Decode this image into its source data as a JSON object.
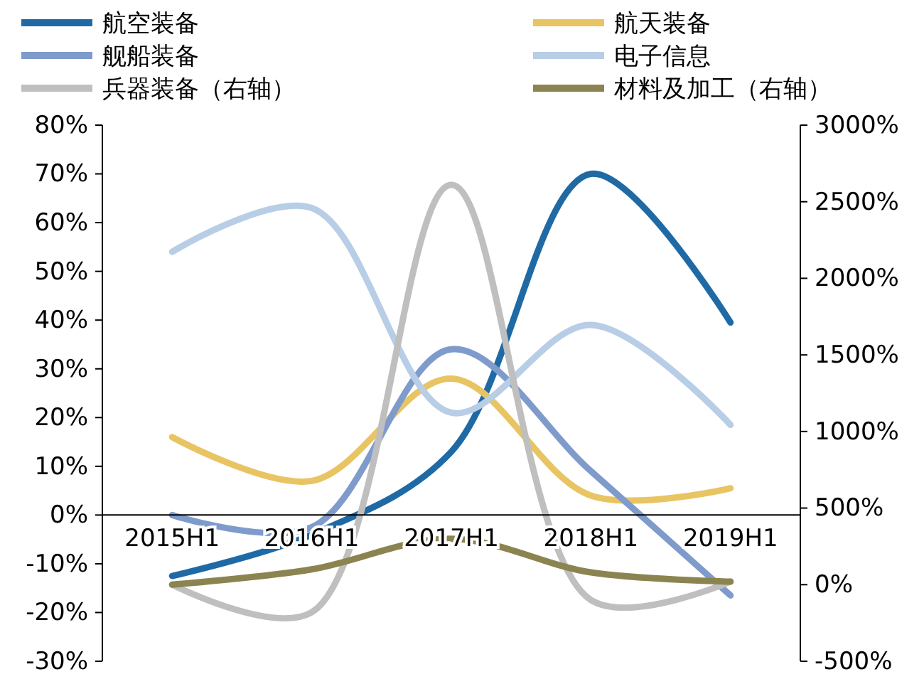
{
  "chart_data": {
    "type": "line",
    "categories": [
      "2015H1",
      "2016H1",
      "2017H1",
      "2018H1",
      "2019H1"
    ],
    "series": [
      {
        "name": "航空装备",
        "color": "#1f6aa5",
        "values": [
          -12.5,
          -4,
          13,
          70,
          39.5
        ]
      },
      {
        "name": "航天装备",
        "color": "#e8c463",
        "values": [
          16,
          7,
          28,
          4,
          5.5
        ]
      },
      {
        "name": "舰船装备",
        "color": "#7f9bcc",
        "values": [
          0,
          -2.5,
          34,
          9,
          -16.5
        ]
      },
      {
        "name": "电子信息",
        "color": "#b8cde6",
        "values": [
          54,
          63,
          21,
          39,
          18.5
        ]
      },
      {
        "name": "兵器装备（右轴）",
        "color": "#bfbfbf",
        "axis": "y2",
        "values": [
          0,
          -180,
          2610,
          -100,
          20
        ]
      },
      {
        "name": "材料及加工（右轴）",
        "color": "#8c8450",
        "axis": "y2",
        "values": [
          0,
          100,
          300,
          80,
          20
        ]
      }
    ],
    "ylim": [
      -30,
      80
    ],
    "yticks": [
      {
        "value": -30,
        "label": "-30%"
      },
      {
        "value": -20,
        "label": "-20%"
      },
      {
        "value": -10,
        "label": "-10%"
      },
      {
        "value": 0,
        "label": "0%"
      },
      {
        "value": 10,
        "label": "10%"
      },
      {
        "value": 20,
        "label": "20%"
      },
      {
        "value": 30,
        "label": "30%"
      },
      {
        "value": 40,
        "label": "40%"
      },
      {
        "value": 50,
        "label": "50%"
      },
      {
        "value": 60,
        "label": "60%"
      },
      {
        "value": 70,
        "label": "70%"
      },
      {
        "value": 80,
        "label": "80%"
      }
    ],
    "y2lim": [
      -500,
      3000
    ],
    "y2ticks": [
      {
        "value": -500,
        "label": "-500%"
      },
      {
        "value": 0,
        "label": "0%"
      },
      {
        "value": 500,
        "label": "500%"
      },
      {
        "value": 1000,
        "label": "1000%"
      },
      {
        "value": 1500,
        "label": "1500%"
      },
      {
        "value": 2000,
        "label": "2000%"
      },
      {
        "value": 2500,
        "label": "2500%"
      },
      {
        "value": 3000,
        "label": "3000%"
      }
    ],
    "legend": "top",
    "grid": false,
    "marker": "none",
    "line_style": "solid"
  }
}
